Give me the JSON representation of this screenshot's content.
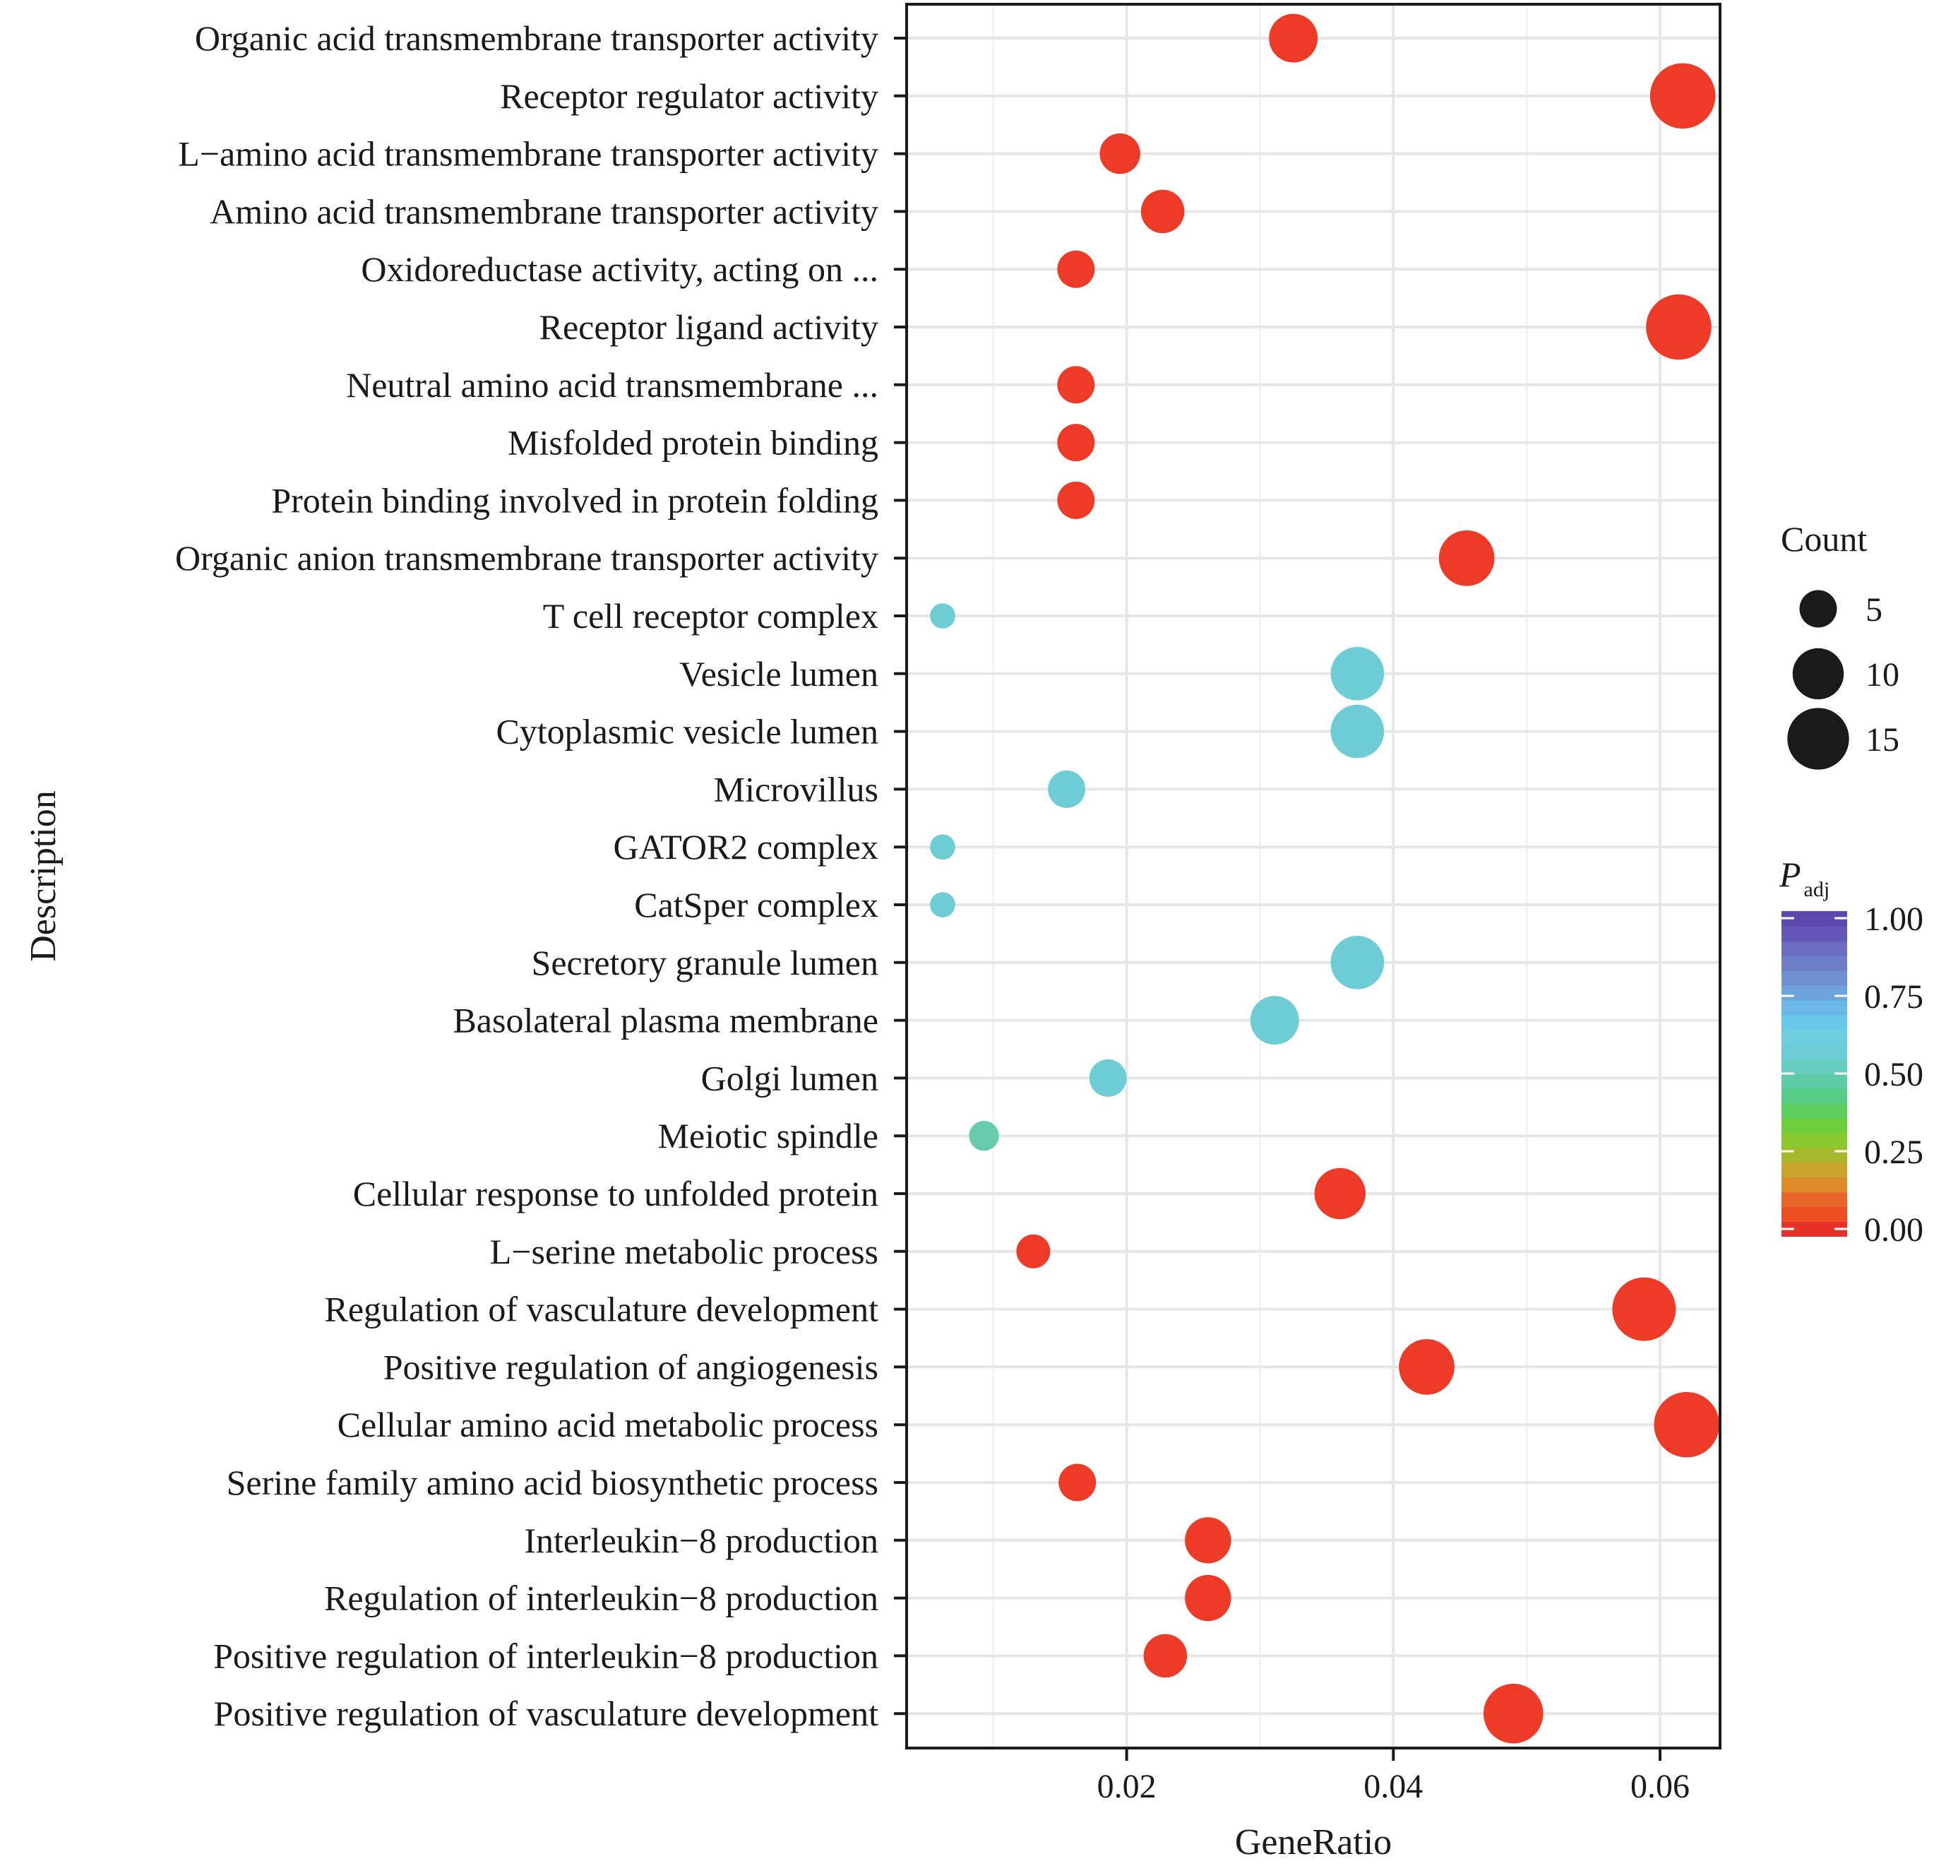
{
  "chart_data": {
    "type": "scatter",
    "xlabel": "GeneRatio",
    "ylabel": "Description",
    "xlim": [
      0.0035,
      0.0645
    ],
    "x_ticks": [
      "0.02",
      "0.04",
      "0.06"
    ],
    "x_tick_values": [
      0.02,
      0.04,
      0.06
    ],
    "grid": true,
    "legend_position": "right",
    "size_legend": {
      "title": "Count",
      "entries": [
        {
          "label": "5",
          "value": 5
        },
        {
          "label": "10",
          "value": 10
        },
        {
          "label": "15",
          "value": 15
        }
      ]
    },
    "color_legend": {
      "title": "P",
      "title_subscript": "adj",
      "ticks": [
        "1.00",
        "0.75",
        "0.50",
        "0.25",
        "0.00"
      ],
      "tick_values": [
        1.0,
        0.75,
        0.5,
        0.25,
        0.0
      ],
      "colors": [
        "#e8302a",
        "#ee4e24",
        "#e8662a",
        "#dd8a2a",
        "#c9a428",
        "#a9b82a",
        "#8ac92d",
        "#6fce3c",
        "#5dcf5f",
        "#57cc86",
        "#5ecba5",
        "#67ccc0",
        "#6ecdd4",
        "#6fcde0",
        "#68c9ea",
        "#6ab8e6",
        "#6da4dc",
        "#6f90d1",
        "#6f7ec8",
        "#6b6bbf",
        "#6456b6",
        "#5d48ad"
      ]
    },
    "points": [
      {
        "description": "Organic acid transmembrane transporter activity",
        "x": 0.0325,
        "count": 9,
        "color": "#ee3b27"
      },
      {
        "description": "Receptor regulator activity",
        "x": 0.0617,
        "count": 17,
        "color": "#ee3b27"
      },
      {
        "description": "L−amino acid transmembrane transporter activity",
        "x": 0.0195,
        "count": 6,
        "color": "#ee3b27"
      },
      {
        "description": "Amino acid transmembrane transporter activity",
        "x": 0.0227,
        "count": 7,
        "color": "#ee3b27"
      },
      {
        "description": "Oxidoreductase activity, acting on ...",
        "x": 0.0162,
        "count": 5,
        "color": "#ee3b27"
      },
      {
        "description": "Receptor ligand activity",
        "x": 0.0614,
        "count": 17,
        "color": "#ee3b27"
      },
      {
        "description": "Neutral amino acid transmembrane ...",
        "x": 0.0162,
        "count": 5,
        "color": "#ee3b27"
      },
      {
        "description": "Misfolded protein binding",
        "x": 0.0162,
        "count": 5,
        "color": "#ee3b27"
      },
      {
        "description": "Protein binding involved in protein folding",
        "x": 0.0162,
        "count": 5,
        "color": "#ee3b27"
      },
      {
        "description": "Organic anion transmembrane transporter activity",
        "x": 0.0455,
        "count": 12,
        "color": "#ee3b27"
      },
      {
        "description": "T cell receptor complex",
        "x": 0.0062,
        "count": 2,
        "color": "#6ecdd4"
      },
      {
        "description": "Vesicle lumen",
        "x": 0.0373,
        "count": 11,
        "color": "#6ecdd4"
      },
      {
        "description": "Cytoplasmic vesicle lumen",
        "x": 0.0373,
        "count": 11,
        "color": "#6ecdd4"
      },
      {
        "description": "Microvillus",
        "x": 0.0155,
        "count": 5,
        "color": "#6ecdd4"
      },
      {
        "description": "GATOR2 complex",
        "x": 0.0062,
        "count": 2,
        "color": "#6ecdd4"
      },
      {
        "description": "CatSper complex",
        "x": 0.0062,
        "count": 2,
        "color": "#6ecdd4"
      },
      {
        "description": "Secretory granule lumen",
        "x": 0.0373,
        "count": 11,
        "color": "#6ecdd4"
      },
      {
        "description": "Basolateral plasma membrane",
        "x": 0.0311,
        "count": 9,
        "color": "#6ecdd4"
      },
      {
        "description": "Golgi lumen",
        "x": 0.0186,
        "count": 5,
        "color": "#6ecdd4"
      },
      {
        "description": "Meiotic spindle",
        "x": 0.0093,
        "count": 3,
        "color": "#67ccac"
      },
      {
        "description": "Cellular response to unfolded protein",
        "x": 0.036,
        "count": 10,
        "color": "#ee3b27"
      },
      {
        "description": "L−serine metabolic process",
        "x": 0.013,
        "count": 4,
        "color": "#ee3b27"
      },
      {
        "description": "Regulation of vasculature development",
        "x": 0.0588,
        "count": 16,
        "color": "#ee3b27"
      },
      {
        "description": "Positive regulation of angiogenesis",
        "x": 0.0425,
        "count": 12,
        "color": "#ee3b27"
      },
      {
        "description": "Cellular amino acid metabolic process",
        "x": 0.062,
        "count": 17,
        "color": "#ee3b27"
      },
      {
        "description": "Serine family amino acid biosynthetic process",
        "x": 0.0163,
        "count": 5,
        "color": "#ee3b27"
      },
      {
        "description": "Interleukin−8 production",
        "x": 0.0261,
        "count": 8,
        "color": "#ee3b27"
      },
      {
        "description": "Regulation of interleukin−8 production",
        "x": 0.0261,
        "count": 8,
        "color": "#ee3b27"
      },
      {
        "description": "Positive regulation of interleukin−8 production",
        "x": 0.0229,
        "count": 7,
        "color": "#ee3b27"
      },
      {
        "description": "Positive regulation of vasculature development",
        "x": 0.049,
        "count": 14,
        "color": "#ee3b27"
      }
    ]
  }
}
